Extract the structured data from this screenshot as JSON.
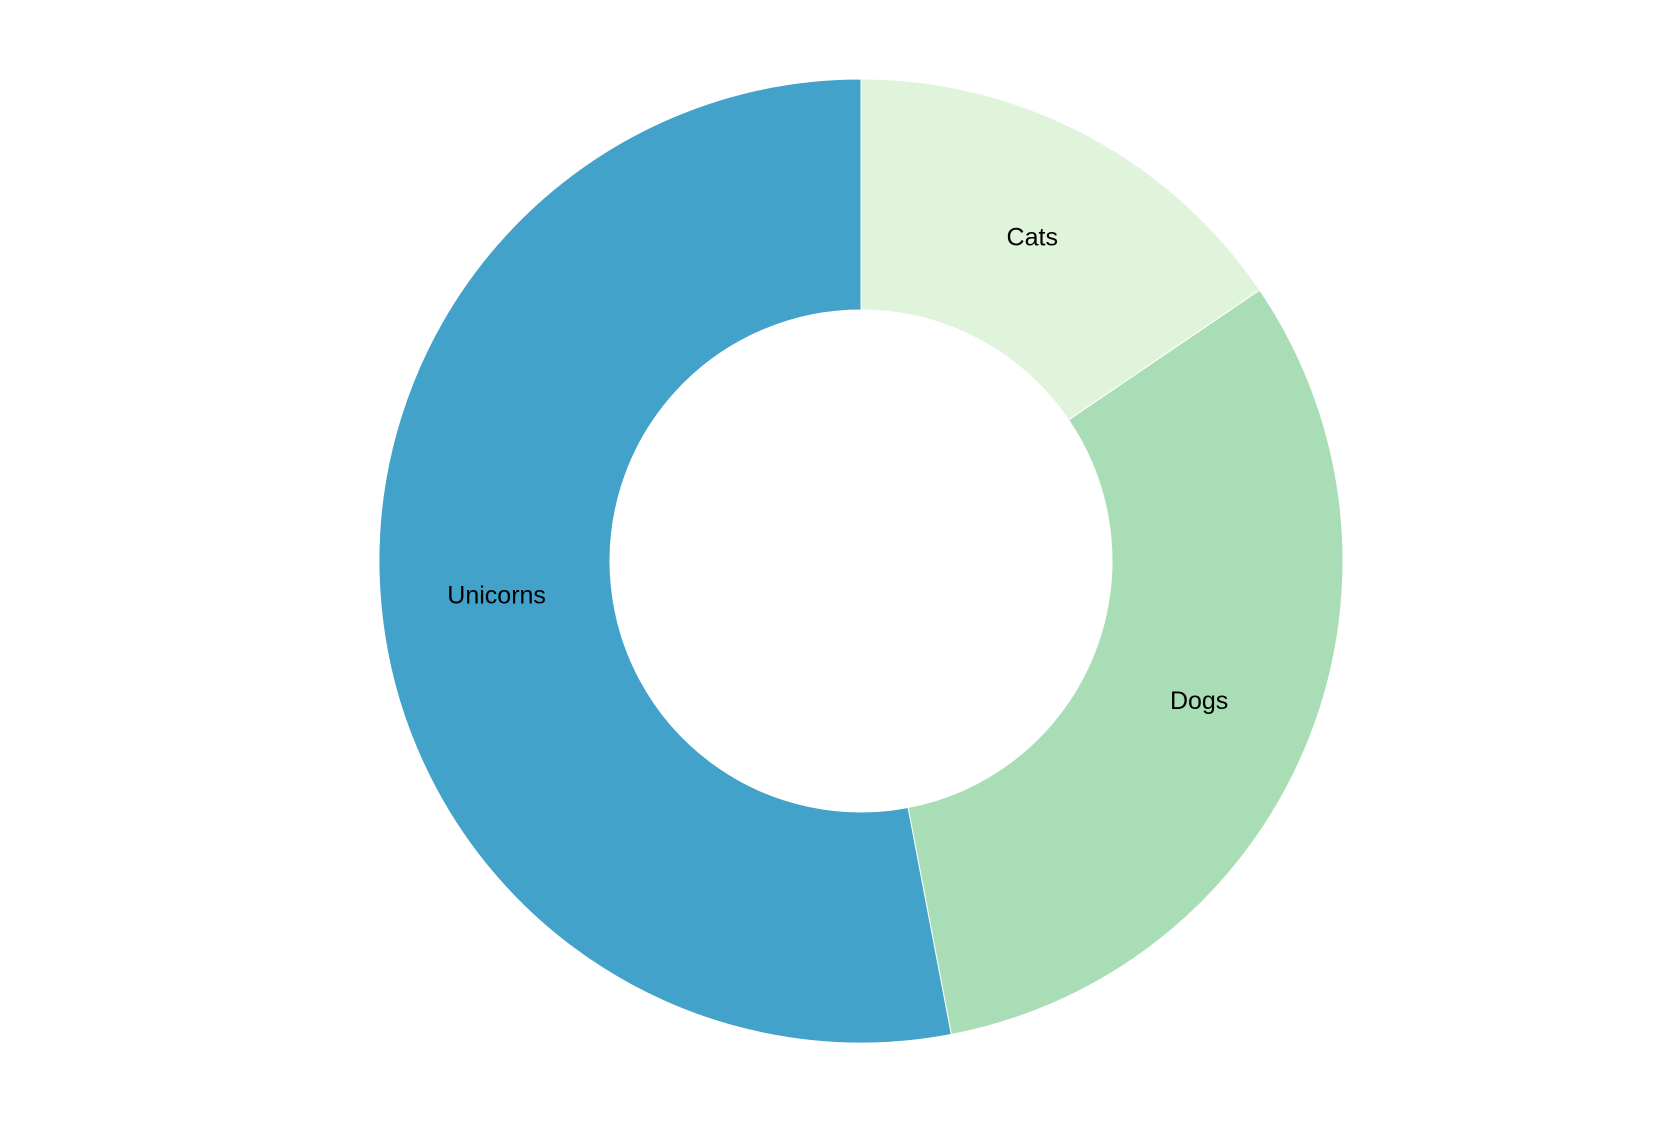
{
  "chart_data": {
    "type": "pie",
    "variant": "donut",
    "title": "",
    "slices": [
      {
        "label": "Cats",
        "value": 15.5,
        "color": "#e0f3db"
      },
      {
        "label": "Dogs",
        "value": 31.5,
        "color": "#a8ddb5"
      },
      {
        "label": "Unicorns",
        "value": 53,
        "color": "#43a2ca"
      }
    ],
    "start_angle": "12 o'clock",
    "direction": "clockwise",
    "legend": "none",
    "labels": "inside slices"
  }
}
